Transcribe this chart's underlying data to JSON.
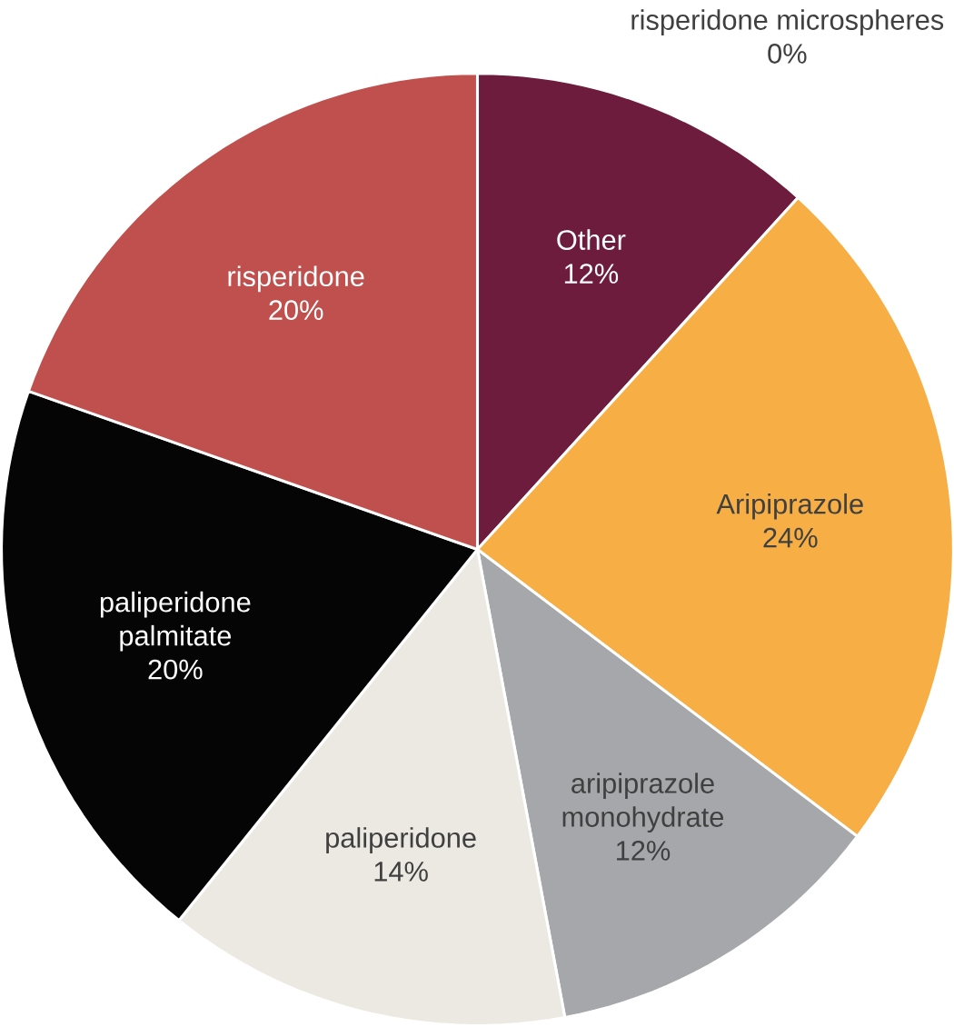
{
  "chart_data": {
    "type": "pie",
    "categories": [
      "risperidone microspheres",
      "Other",
      "Aripiprazole",
      "aripiprazole monohydrate",
      "paliperidone",
      "paliperidone palmitate",
      "risperidone"
    ],
    "values": [
      0,
      12,
      24,
      12,
      14,
      20,
      20
    ],
    "value_labels": [
      "0%",
      "12%",
      "24%",
      "12%",
      "14%",
      "20%",
      "20%"
    ],
    "colors": [
      "#8a2b4f",
      "#6e1c3e",
      "#f6ae45",
      "#a6a7aa",
      "#ebe9e1",
      "#050505",
      "#c0504d"
    ]
  }
}
